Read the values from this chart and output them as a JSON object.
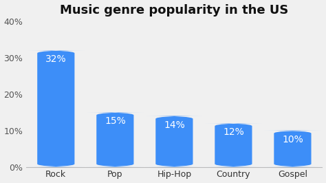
{
  "title": "Music genre popularity in the US",
  "categories": [
    "Rock",
    "Pop",
    "Hip-Hop",
    "Country",
    "Gospel"
  ],
  "values": [
    32,
    15,
    14,
    12,
    10
  ],
  "labels": [
    "32%",
    "15%",
    "14%",
    "12%",
    "10%"
  ],
  "bar_color": "#3d8ef8",
  "label_color": "#ffffff",
  "title_color": "#111111",
  "background_color": "#f0f0f0",
  "ylim": [
    0,
    40
  ],
  "yticks": [
    0,
    10,
    20,
    30,
    40
  ],
  "ytick_labels": [
    "0%",
    "10%",
    "20%",
    "30%",
    "40%"
  ],
  "title_fontsize": 13,
  "label_fontsize": 10,
  "tick_fontsize": 9,
  "bar_width": 0.65,
  "rounding_size": 0.8
}
